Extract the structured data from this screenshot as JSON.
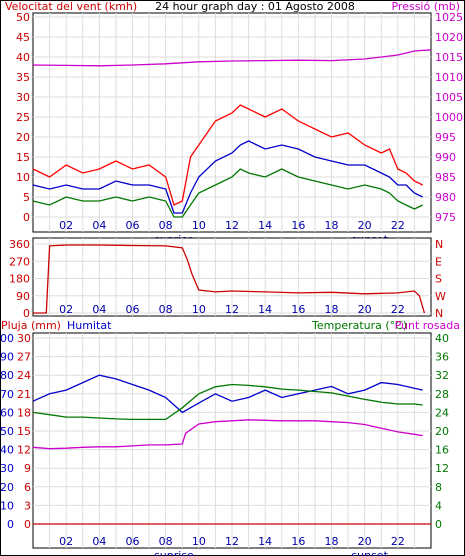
{
  "chart_data": [
    {
      "type": "line",
      "panel": "wind-pressure",
      "title": "24 hour graph day : 01 Agosto 2008",
      "y_left_label": "Velocitat del vent (kmh)",
      "y_right_label": "Pressió (mb)",
      "ylim_left": [
        0,
        50
      ],
      "ylim_right": [
        975,
        1025
      ],
      "y_left_ticks": [
        "0",
        "5",
        "10",
        "15",
        "20",
        "25",
        "30",
        "35",
        "40",
        "45",
        "50"
      ],
      "y_right_ticks": [
        "975",
        "980",
        "985",
        "990",
        "995",
        "1000",
        "1005",
        "1010",
        "1015",
        "1020",
        "1025"
      ],
      "x_ticks": [
        "02",
        "04",
        "06",
        "08",
        "10",
        "12",
        "14",
        "16",
        "18",
        "20",
        "22"
      ],
      "xlim": [
        0,
        24
      ],
      "sunrise_label": "sunrise",
      "sunset_label": "sunset",
      "grid": true,
      "series": [
        {
          "axis": "left",
          "color": "#ff0000",
          "x": [
            0,
            1,
            2,
            3,
            4,
            5,
            6,
            7,
            8,
            8.5,
            9,
            9.5,
            10,
            11,
            12,
            12.5,
            13,
            14,
            15,
            16,
            17,
            18,
            19,
            20,
            21,
            21.5,
            22,
            22.5,
            23,
            23.5
          ],
          "values": [
            12,
            10,
            13,
            11,
            12,
            14,
            12,
            13,
            10,
            3,
            4,
            15,
            18,
            24,
            26,
            28,
            27,
            25,
            27,
            24,
            22,
            20,
            21,
            18,
            16,
            17,
            12,
            11,
            9,
            8
          ]
        },
        {
          "axis": "left",
          "color": "#0000cc",
          "x": [
            0,
            1,
            2,
            3,
            4,
            5,
            6,
            7,
            8,
            8.5,
            9,
            9.5,
            10,
            11,
            12,
            12.5,
            13,
            14,
            15,
            16,
            17,
            18,
            19,
            20,
            21,
            21.5,
            22,
            22.5,
            23,
            23.5
          ],
          "values": [
            8,
            7,
            8,
            7,
            7,
            9,
            8,
            8,
            7,
            1,
            1,
            6,
            10,
            14,
            16,
            18,
            19,
            17,
            18,
            17,
            15,
            14,
            13,
            13,
            11,
            10,
            8,
            8,
            6,
            5
          ]
        },
        {
          "axis": "left",
          "color": "#007700",
          "x": [
            0,
            1,
            2,
            3,
            4,
            5,
            6,
            7,
            8,
            8.5,
            9,
            9.5,
            10,
            11,
            12,
            12.5,
            13,
            14,
            15,
            16,
            17,
            18,
            19,
            20,
            21,
            21.5,
            22,
            22.5,
            23,
            23.5
          ],
          "values": [
            4,
            3,
            5,
            4,
            4,
            5,
            4,
            5,
            4,
            0,
            0,
            3,
            6,
            8,
            10,
            12,
            11,
            10,
            12,
            10,
            9,
            8,
            7,
            8,
            7,
            6,
            4,
            3,
            2,
            3
          ]
        },
        {
          "axis": "right",
          "color": "#cc00cc",
          "x": [
            0,
            2,
            4,
            6,
            8,
            10,
            12,
            14,
            16,
            18,
            20,
            21,
            22,
            23,
            24
          ],
          "values": [
            1013,
            1012.9,
            1012.8,
            1013,
            1013.3,
            1013.8,
            1014,
            1014.1,
            1014.2,
            1014.1,
            1014.5,
            1015,
            1015.5,
            1016.5,
            1016.8
          ]
        }
      ]
    },
    {
      "type": "line",
      "panel": "wind-direction",
      "ylim": [
        0,
        360
      ],
      "y_left_ticks": [
        "0",
        "90",
        "180",
        "270",
        "360"
      ],
      "y_right_ticks": [
        "N",
        "W",
        "S",
        "E",
        "N"
      ],
      "x_ticks": [
        "02",
        "04",
        "06",
        "08",
        "10",
        "12",
        "14",
        "16",
        "18",
        "20",
        "22"
      ],
      "xlim": [
        0,
        24
      ],
      "series": [
        {
          "color": "#cc0000",
          "x": [
            0,
            0.8,
            1,
            2,
            4,
            6,
            8,
            9,
            9.3,
            9.6,
            10,
            11,
            12,
            14,
            16,
            18,
            20,
            22,
            23,
            23.3,
            23.6
          ],
          "values": [
            0,
            0,
            350,
            355,
            355,
            352,
            350,
            340,
            280,
            200,
            120,
            110,
            115,
            110,
            105,
            108,
            100,
            105,
            115,
            90,
            0
          ]
        }
      ]
    },
    {
      "type": "line",
      "panel": "rain-humidity-temperature",
      "y_left_label_1": "Pluja (mm)",
      "y_left_label_2": "Humitat",
      "y_right_label_1": "Temperatura (°C)",
      "y_right_label_2": "Punt rosada",
      "ylim_rain": [
        0,
        30
      ],
      "ylim_humidity": [
        0,
        100
      ],
      "ylim_temperature": [
        0,
        40
      ],
      "y_rain_ticks": [
        "0",
        "3",
        "6",
        "9",
        "12",
        "15",
        "18",
        "21",
        "24",
        "27",
        "30"
      ],
      "y_humidity_ticks": [
        "0",
        "10",
        "20",
        "30",
        "40",
        "50",
        "60",
        "70",
        "80",
        "90",
        "100"
      ],
      "y_right_ticks": [
        "0",
        "4",
        "8",
        "12",
        "16",
        "20",
        "24",
        "28",
        "32",
        "36",
        "40"
      ],
      "x_ticks": [
        "02",
        "04",
        "06",
        "08",
        "10",
        "12",
        "14",
        "16",
        "18",
        "20",
        "22"
      ],
      "xlim": [
        0,
        24
      ],
      "sunrise_label": "sunrise",
      "sunset_label": "sunset",
      "grid": true,
      "series": [
        {
          "name": "Pluja (mm)",
          "axis": "rain",
          "color": "#cc0000",
          "x": [
            0,
            24
          ],
          "values": [
            0,
            0
          ]
        },
        {
          "name": "Humitat",
          "axis": "humidity",
          "color": "#0000cc",
          "x": [
            0,
            1,
            2,
            3,
            4,
            5,
            6,
            7,
            8,
            9,
            10,
            11,
            12,
            13,
            14,
            15,
            16,
            17,
            18,
            19,
            20,
            21,
            22,
            23,
            23.5
          ],
          "values": [
            66,
            70,
            72,
            76,
            80,
            78,
            75,
            72,
            68,
            60,
            65,
            70,
            66,
            68,
            72,
            68,
            70,
            72,
            74,
            70,
            72,
            76,
            75,
            73,
            72
          ]
        },
        {
          "name": "Temperatura (°C)",
          "axis": "temperature",
          "color": "#007700",
          "x": [
            0,
            1,
            2,
            3,
            4,
            5,
            6,
            7,
            8,
            9,
            10,
            11,
            12,
            13,
            14,
            15,
            16,
            17,
            18,
            19,
            20,
            21,
            22,
            23,
            23.5
          ],
          "values": [
            24,
            23.5,
            23,
            23,
            22.8,
            22.6,
            22.5,
            22.5,
            22.5,
            25,
            28,
            29.5,
            30,
            29.8,
            29.5,
            29,
            28.8,
            28.5,
            28.2,
            27.5,
            26.8,
            26.2,
            25.8,
            25.8,
            25.6
          ]
        },
        {
          "name": "Punt rosada",
          "axis": "temperature",
          "color": "#cc00cc",
          "x": [
            0,
            1,
            2,
            3,
            4,
            5,
            6,
            7,
            8,
            9,
            9.2,
            10,
            11,
            12,
            13,
            14,
            15,
            16,
            17,
            18,
            19,
            20,
            21,
            22,
            23,
            23.5
          ],
          "values": [
            16.5,
            16.2,
            16.3,
            16.5,
            16.6,
            16.6,
            16.8,
            17,
            17,
            17.2,
            19.5,
            21.5,
            22,
            22.2,
            22.4,
            22.3,
            22.2,
            22.2,
            22.2,
            22,
            21.8,
            21.4,
            20.6,
            19.8,
            19.3,
            19
          ]
        }
      ]
    }
  ]
}
